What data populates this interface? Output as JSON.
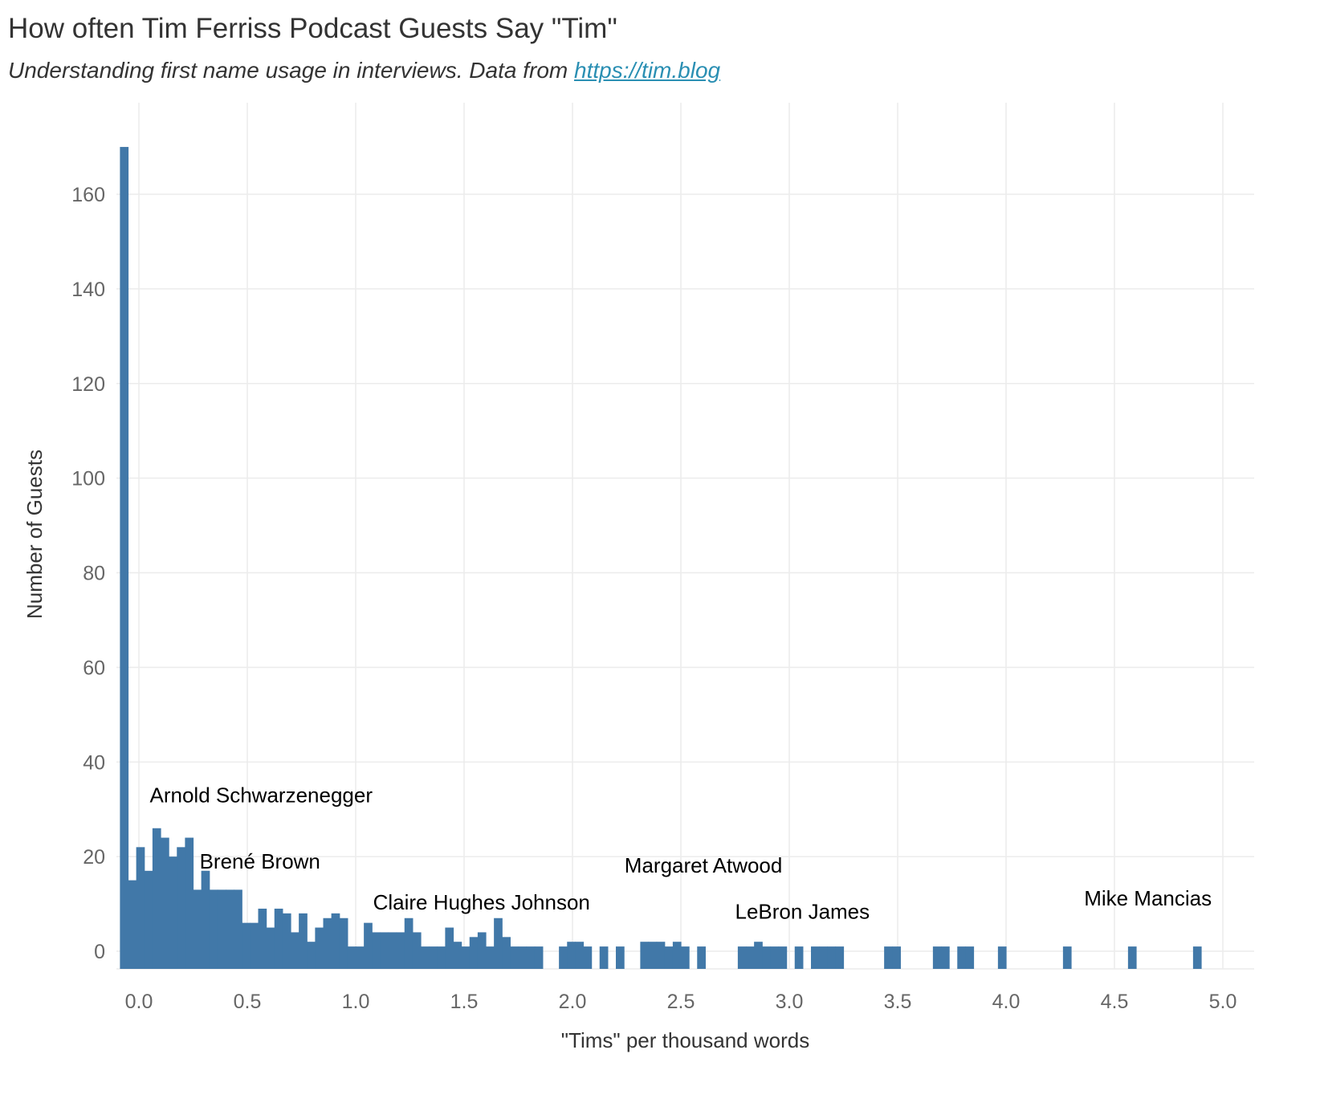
{
  "chart_data": {
    "type": "bar",
    "title": "How often Tim Ferriss Podcast Guests Say \"Tim\"",
    "subtitle_text": "Understanding first name usage in interviews. Data from ",
    "subtitle_link": "https://tim.blog",
    "xlabel": "\"Tims\" per thousand words",
    "ylabel": "Number of Guests",
    "xlim": [
      -0.09,
      5.15
    ],
    "ylim": [
      -4,
      175
    ],
    "xticks": [
      0.0,
      0.5,
      1.0,
      1.5,
      2.0,
      2.5,
      3.0,
      3.5,
      4.0,
      4.5,
      5.0
    ],
    "xtick_labels": [
      "0.0",
      "0.5",
      "1.0",
      "1.5",
      "2.0",
      "2.5",
      "3.0",
      "3.5",
      "4.0",
      "4.5",
      "5.0"
    ],
    "yticks": [
      0,
      20,
      40,
      60,
      80,
      100,
      120,
      140,
      160
    ],
    "ytick_labels": [
      "0",
      "20",
      "40",
      "60",
      "80",
      "100",
      "120",
      "140",
      "160"
    ],
    "grid": true,
    "bin_width": 0.0375,
    "series": [
      {
        "bin_start": [
          -0.0875,
          -0.05,
          -0.0125,
          0.025,
          0.0625,
          0.1,
          0.1375,
          0.175,
          0.2125,
          0.25,
          0.2875,
          0.325,
          0.3625,
          0.4,
          0.4375,
          0.475,
          0.5125,
          0.55,
          0.5875,
          0.625,
          0.6625,
          0.7,
          0.7375,
          0.775,
          0.8125,
          0.85,
          0.8875,
          0.925,
          0.9625,
          1.0,
          1.0375,
          1.075,
          1.1125,
          1.15,
          1.1875,
          1.225,
          1.2625,
          1.3,
          1.3375,
          1.375,
          1.4125,
          1.45,
          1.4875,
          1.525,
          1.5625,
          1.6,
          1.6375,
          1.675,
          1.7125,
          1.75,
          1.7875,
          1.825,
          1.9375,
          1.975,
          2.0125,
          2.05,
          2.125,
          2.2,
          2.3125,
          2.35,
          2.3875,
          2.425,
          2.4625,
          2.5,
          2.575,
          2.7625,
          2.8,
          2.8375,
          2.875,
          2.9125,
          2.95,
          3.025,
          3.1,
          3.1375,
          3.175,
          3.2125,
          3.4375,
          3.475,
          3.6625,
          3.7,
          3.775,
          3.8125,
          3.9625,
          4.2625,
          4.5625,
          4.8625
        ],
        "values": [
          170,
          15,
          22,
          17,
          26,
          24,
          20,
          22,
          24,
          13,
          17,
          13,
          13,
          13,
          13,
          6,
          6,
          9,
          5,
          9,
          8,
          4,
          8,
          2,
          5,
          7,
          8,
          7,
          1,
          1,
          6,
          4,
          4,
          4,
          4,
          7,
          4,
          1,
          1,
          1,
          5,
          2,
          1,
          3,
          4,
          1,
          7,
          3,
          1,
          1,
          1,
          1,
          1,
          2,
          2,
          1,
          1,
          1,
          2,
          2,
          2,
          1,
          2,
          1,
          1,
          1,
          1,
          2,
          1,
          1,
          1,
          1,
          1,
          1,
          1,
          1,
          1,
          1,
          1,
          1,
          1,
          1,
          1,
          1,
          1,
          1
        ]
      }
    ],
    "bar_color": "#4178a8",
    "annotations": [
      {
        "text": "Arnold Schwarzenegger",
        "x": 0.05,
        "y": 31.5
      },
      {
        "text": "Brené Brown",
        "x": 0.28,
        "y": 17.5
      },
      {
        "text": "Claire Hughes Johnson",
        "x": 1.08,
        "y": 8.8
      },
      {
        "text": "Margaret Atwood",
        "x": 2.24,
        "y": 16.6
      },
      {
        "text": "LeBron James",
        "x": 2.75,
        "y": 6.9
      },
      {
        "text": "Mike Mancias",
        "x": 4.36,
        "y": 9.7
      }
    ]
  }
}
